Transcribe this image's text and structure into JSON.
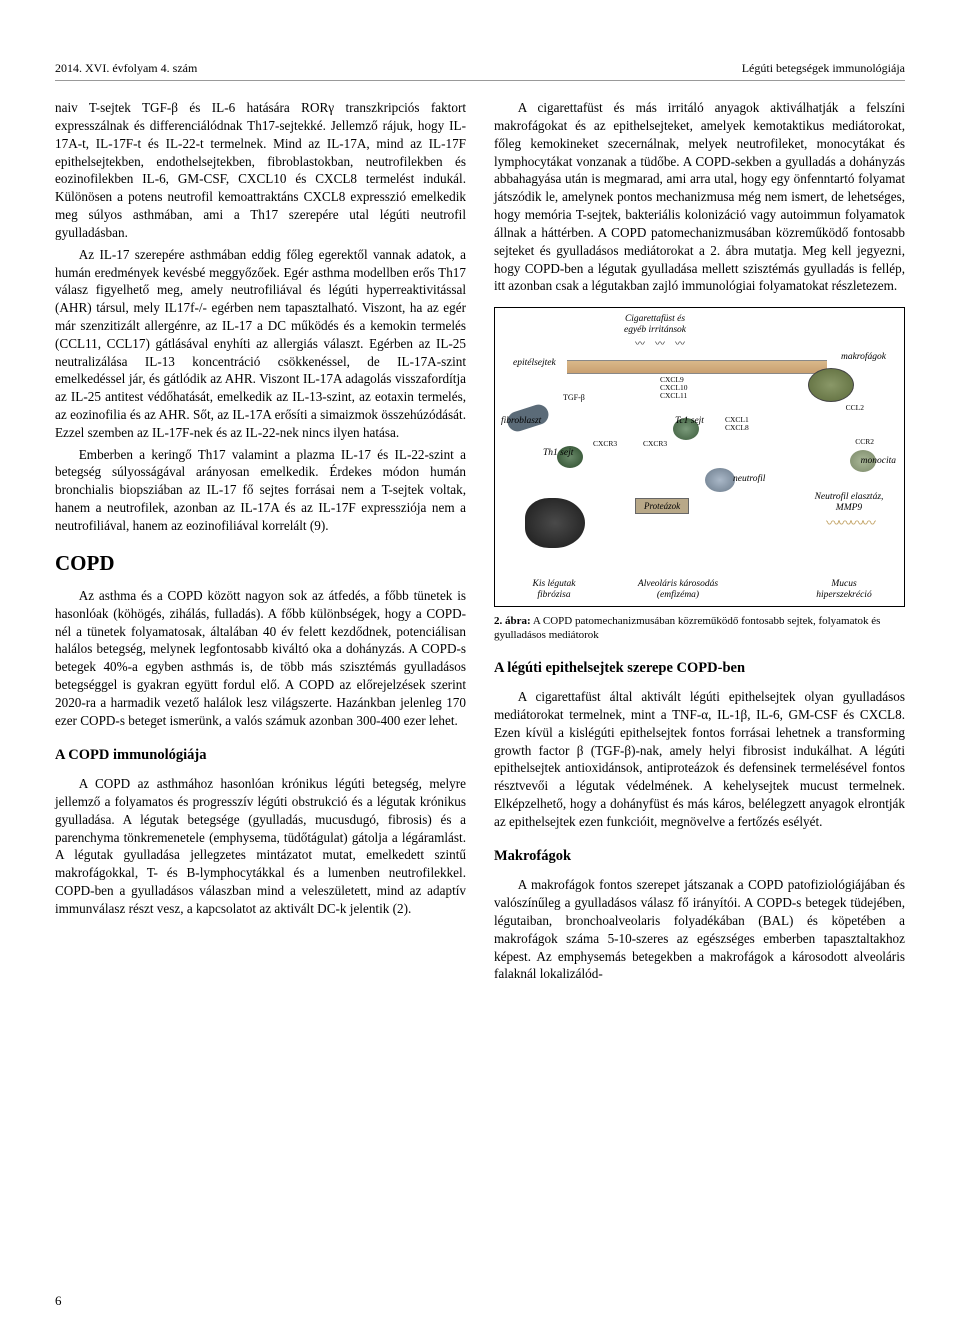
{
  "header": {
    "left": "2014. XVI. évfolyam 4. szám",
    "right": "Légúti betegségek immunológiája"
  },
  "col1": {
    "p1": "naiv T-sejtek TGF-β és IL-6 hatására RORγ transzkripciós faktort expresszálnak és differenciálódnak Th17-sejtekké. Jellemző rájuk, hogy IL-17A-t, IL-17F-t és IL-22-t termelnek. Mind az IL-17A, mind az IL-17F epithelsejtekben, endothelsejtekben, fibroblastokban, neutrofilekben és eozinofilekben IL-6, GM-CSF, CXCL10 és CXCL8 termelést indukál. Különösen a potens neutrofil kemoattraktáns CXCL8 expresszió emelkedik meg súlyos asthmában, ami a Th17 szerepére utal légúti neutrofil gyulladásban.",
    "p2": "Az IL-17 szerepére asthmában eddig főleg egerektől vannak adatok, a humán eredmények kevésbé meggyőzőek. Egér asthma modellben erős Th17 válasz figyelhető meg, amely neutrofiliával és légúti hyperreaktivitással (AHR) társul, mely IL17f-/- egérben nem tapasztalható. Viszont, ha az egér már szenzitizált allergénre, az IL-17 a DC működés és a kemokin termelés (CCL11, CCL17) gátlásával enyhíti az allergiás választ. Egérben az IL-25 neutralizálása IL-13 koncentráció csökkenéssel, de IL-17A-szint emelkedéssel jár, és gátlódik az AHR. Viszont IL-17A adagolás visszafordítja az IL-25 antitest védőhatását, emelkedik az IL-13-szint, az eotaxin termelés, az eozinofilia és az AHR. Sőt, az IL-17A erősíti a simaizmok összehúzódását. Ezzel szemben az IL-17F-nek és az IL-22-nek nincs ilyen hatása.",
    "p3": "Emberben a keringő Th17 valamint a plazma IL-17 és IL-22-szint a betegség súlyosságával arányosan emelkedik. Érdekes módon humán bronchialis biopsziában az IL-17 fő sejtes forrásai nem a T-sejtek voltak, hanem a neutrofilek, azonban az IL-17A és az IL-17F expressziója nem a neutrofiliával, hanem az eozinofiliával korrelált (9).",
    "h_copd": "COPD",
    "p4": "Az asthma és a COPD között nagyon sok az átfedés, a főbb tünetek is hasonlóak (köhögés, zihálás, fulladás). A főbb különbségek, hogy a COPD-nél a tünetek folyamatosak, általában 40 év felett kezdődnek, potenciálisan halálos betegség, melynek legfontosabb kiváltó oka a dohányzás. A COPD-s betegek 40%-a egyben asthmás is, de több más szisztémás gyulladásos betegséggel is gyakran együtt fordul elő. A COPD az előrejelzések szerint 2020-ra a harmadik vezető halálok lesz világszerte. Hazánkban jelenleg 170 ezer COPD-s beteget ismerünk, a valós számuk azonban 300-400 ezer lehet.",
    "h_immun": "A COPD immunológiája",
    "p5": "A COPD az asthmához hasonlóan krónikus légúti betegség, melyre jellemző a folyamatos és progresszív légúti obstrukció és a légutak krónikus gyulladása. A légutak betegsége (gyulladás, mucusdugó, fibrosis) és a parenchyma tönkremenetele (emphysema, tüdőtágulat) gátolja a légáramlást. A légutak gyulladása jellegzetes mintázatot mutat, emelkedett szintű makrofágokkal, T- és B-lymphocytákkal és a lumenben neutrofilekkel. COPD-ben a gyulladásos válaszban mind a veleszületett, mind az adaptív immunválasz részt vesz, a kapcsolatot az aktivált DC-k jelentik (2)."
  },
  "col2": {
    "p1": "A cigarettafüst és más irritáló anyagok aktiválhatják a felszíni makrofágokat és az epithelsejteket, amelyek kemotaktikus mediátorokat, főleg kemokineket szecernálnak, melyek neutrofileket, monocytákat és lymphocytákat vonzanak a tüdőbe. A COPD-sekben a gyulladás a dohányzás abbahagyása után is megmarad, ami arra utal, hogy egy önfenntartó folyamat játszódik le, amelynek pontos mechanizmusa még nem ismert, de lehetséges, hogy memória T-sejtek, bakteriális kolonizáció vagy autoimmun folyamatok állnak a háttérben. A COPD patomechanizmusában közreműködő fontosabb sejteket és gyulladásos mediátorokat a 2. ábra mutatja. Meg kell jegyezni, hogy COPD-ben a légutak gyulladása mellett szisztémás gyulladás is fellép, itt azonban csak a légutakban zajló immunológiai folyamatokat részletezem.",
    "fig": {
      "labels": {
        "smoke": "Cigarettafüst és\negyéb irritánsok",
        "epithel": "epitélsejtek",
        "makrofag": "makrofágok",
        "fibroblast": "fibroblaszt",
        "th1": "Th1 sejt",
        "tc1": "Tc1 sejt",
        "neutrofil": "neutrofil",
        "monocita": "monocita",
        "proteazok": "Proteázok",
        "elasztaz": "Neutrofil elasztáz,\nMMP9",
        "kislegutak": "Kis légutak\nfibrózisa",
        "alveolaris": "Alveoláris károsodás\n(emfizéma)",
        "mucus": "Mucus\nhiperszekréció",
        "tgfb": "TGF-β",
        "cxcl9": "CXCL9",
        "cxcl10": "CXCL10",
        "cxcl11": "CXCL11",
        "cxcr3": "CXCR3",
        "ccr2": "CCR2",
        "ccl2": "CCL2",
        "cxcl1": "CXCL1",
        "cxcl8": "CXCL8"
      },
      "colors": {
        "epith": "#d9b88a",
        "makrofag": "#6b7a4a",
        "neutrofil": "#8aa0b8",
        "fibroblast": "#5b6b78",
        "th1": "#4a6b4a",
        "monocita": "#9aa88a",
        "border": "#000000"
      }
    },
    "fig_caption_bold": "2. ábra:",
    "fig_caption": " A COPD patomechanizmusában közreműködő fontosabb sejtek, folyamatok és gyulladásos mediátorok",
    "h_epithel": "A légúti epithelsejtek szerepe COPD-ben",
    "p2": "A cigarettafüst által aktivált légúti epithelsejtek olyan gyulladásos mediátorokat termelnek, mint a TNF-α, IL-1β, IL-6, GM-CSF és CXCL8. Ezen kívül a kislégúti epithelsejtek fontos forrásai lehetnek a transforming growth factor β (TGF-β)-nak, amely helyi fibrosist indukálhat. A légúti epithelsejtek antioxidánsok, antiproteázok és defensinek termelésével fontos résztvevői a légutak védelmének. A kehelysejtek mucust termelnek. Elképzelhető, hogy a dohányfüst és más káros, belélegzett anyagok elrontják az epithelsejtek ezen funkcióit, megnövelve a fertőzés esélyét.",
    "h_makrofag": "Makrofágok",
    "p3": "A makrofágok fontos szerepet játszanak a COPD patofiziológiájában és valószínűleg a gyulladásos válasz fő irányítói. A COPD-s betegek tüdejében, légutaiban, bronchoalveolaris folyadékában (BAL) és köpetében a makrofágok száma 5-10-szeres az egészséges emberben tapasztaltakhoz képest. Az emphysemás betegekben a makrofágok a károsodott alveoláris falaknál lokalizálód-"
  },
  "page_number": "6"
}
